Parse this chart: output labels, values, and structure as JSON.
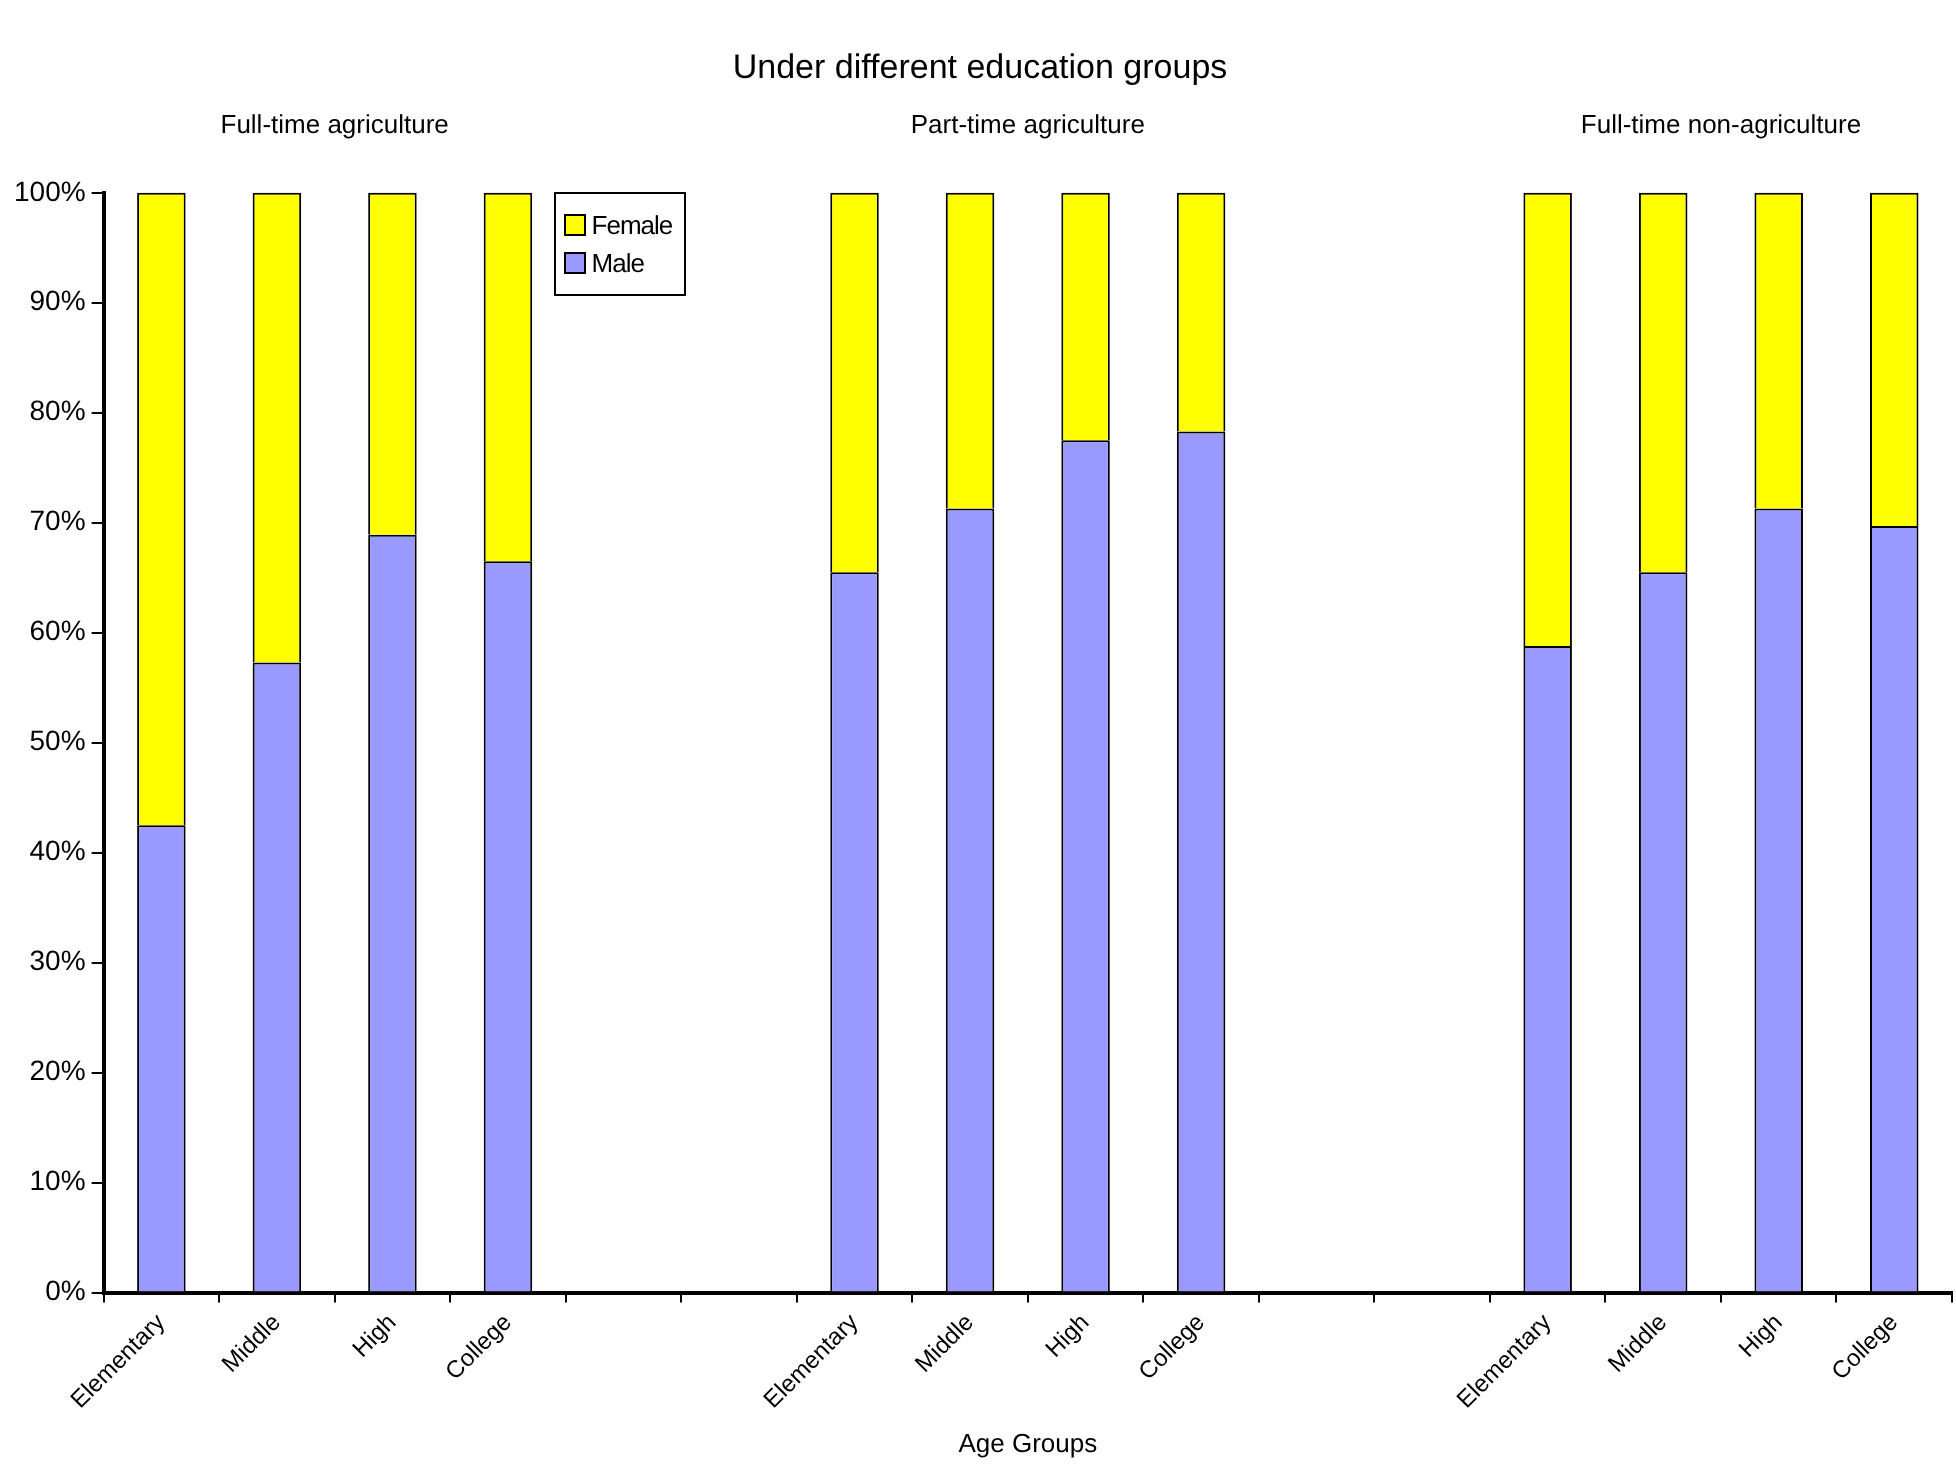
{
  "chart_data": {
    "type": "bar",
    "subtitle": "Under different education groups",
    "xlabel": "Age Groups",
    "annotations": [
      "Full-time agriculture",
      "Part-time agriculture",
      "Full-time non-agriculture"
    ],
    "categories": [
      "Elementary",
      "Middle",
      "High",
      "College",
      null,
      null,
      "Elementary",
      "Middle",
      "High",
      "College",
      null,
      null,
      "Elementary",
      "Middle",
      "High",
      "College"
    ],
    "stacked": true,
    "series": [
      {
        "name": "Male",
        "color": "#9999ff",
        "values": [
          42.5,
          57.3,
          68.9,
          66.5,
          null,
          null,
          65.5,
          71.3,
          77.5,
          78.3,
          null,
          null,
          58.8,
          65.5,
          71.3,
          69.7
        ]
      },
      {
        "name": "Female",
        "color": "#ffff00",
        "values": [
          57.5,
          42.7,
          31.1,
          33.5,
          null,
          null,
          34.5,
          28.7,
          22.5,
          21.7,
          null,
          null,
          41.2,
          34.5,
          28.7,
          30.3
        ]
      }
    ],
    "ylim": [
      0,
      100
    ],
    "yticks": [
      {
        "value": 0,
        "label": "0%"
      },
      {
        "value": 10,
        "label": "10%"
      },
      {
        "value": 20,
        "label": "20%"
      },
      {
        "value": 30,
        "label": "30%"
      },
      {
        "value": 40,
        "label": "40%"
      },
      {
        "value": 50,
        "label": "50%"
      },
      {
        "value": 60,
        "label": "60%"
      },
      {
        "value": 70,
        "label": "70%"
      },
      {
        "value": 80,
        "label": "80%"
      },
      {
        "value": 90,
        "label": "90%"
      },
      {
        "value": 100,
        "label": "100%"
      }
    ],
    "grid": false,
    "legend": "top left"
  }
}
